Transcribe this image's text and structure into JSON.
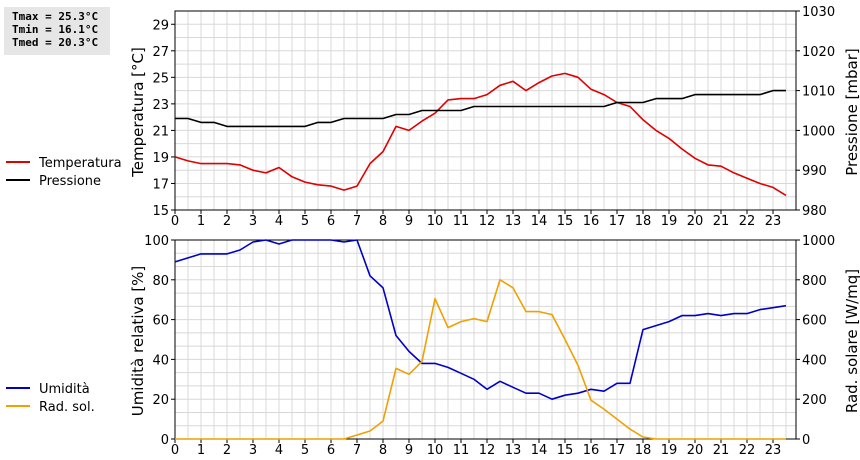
{
  "stats": {
    "tmax": "Tmax = 25.3°C",
    "tmin": "Tmin = 16.1°C",
    "tmed": "Tmed = 20.3°C"
  },
  "colors": {
    "temperatura": "#e00000",
    "pressione": "#000000",
    "umidita": "#0000c8",
    "rad_sol": "#f0a000",
    "grid": "#d8d8d8"
  },
  "chart_data": [
    {
      "type": "line",
      "grid": true,
      "legend_position": "left",
      "xlabel": "",
      "x_ticks": [
        "0",
        "1",
        "2",
        "3",
        "4",
        "5",
        "6",
        "7",
        "8",
        "9",
        "10",
        "11",
        "12",
        "13",
        "14",
        "15",
        "16",
        "17",
        "18",
        "19",
        "20",
        "21",
        "22",
        "23"
      ],
      "y_left": {
        "label": "Temperatura [°C]",
        "lim": [
          15,
          30
        ],
        "ticks": [
          "15",
          "17",
          "19",
          "21",
          "23",
          "25",
          "27",
          "29"
        ]
      },
      "y_right": {
        "label": "Pressione [mbar]",
        "lim": [
          980,
          1030
        ],
        "ticks": [
          "980",
          "990",
          "1000",
          "1010",
          "1020",
          "1030"
        ]
      },
      "series": [
        {
          "name": "Temperatura",
          "axis": "left",
          "x": [
            0,
            0.5,
            1,
            1.5,
            2,
            2.5,
            3,
            3.5,
            4,
            4.5,
            5,
            5.5,
            6,
            6.5,
            7,
            7.5,
            8,
            8.5,
            9,
            9.5,
            10,
            10.5,
            11,
            11.5,
            12,
            12.5,
            13,
            13.5,
            14,
            14.5,
            15,
            15.5,
            16,
            16.5,
            17,
            17.5,
            18,
            18.5,
            19,
            19.5,
            20,
            20.5,
            21,
            21.5,
            22,
            22.5,
            23,
            23.5
          ],
          "values": [
            19.0,
            18.7,
            18.5,
            18.5,
            18.5,
            18.4,
            18.0,
            17.8,
            18.2,
            17.5,
            17.1,
            16.9,
            16.8,
            16.5,
            16.8,
            18.5,
            19.4,
            21.3,
            21.0,
            21.7,
            22.3,
            23.3,
            23.4,
            23.4,
            23.7,
            24.4,
            24.7,
            24.0,
            24.6,
            25.1,
            25.3,
            25.0,
            24.1,
            23.7,
            23.1,
            22.8,
            21.8,
            21.0,
            20.4,
            19.6,
            18.9,
            18.4,
            18.3,
            17.8,
            17.4,
            17.0,
            16.7,
            16.1
          ]
        },
        {
          "name": "Pressione",
          "axis": "right",
          "x": [
            0,
            0.5,
            1,
            1.5,
            2,
            2.5,
            3,
            3.5,
            4,
            4.5,
            5,
            5.5,
            6,
            6.5,
            7,
            7.5,
            8,
            8.5,
            9,
            9.5,
            10,
            10.5,
            11,
            11.5,
            12,
            12.5,
            13,
            13.5,
            14,
            14.5,
            15,
            15.5,
            16,
            16.5,
            17,
            17.5,
            18,
            18.5,
            19,
            19.5,
            20,
            20.5,
            21,
            21.5,
            22,
            22.5,
            23,
            23.5
          ],
          "values": [
            1003,
            1003,
            1002,
            1002,
            1001,
            1001,
            1001,
            1001,
            1001,
            1001,
            1001,
            1002,
            1002,
            1003,
            1003,
            1003,
            1003,
            1004,
            1004,
            1005,
            1005,
            1005,
            1005,
            1006,
            1006,
            1006,
            1006,
            1006,
            1006,
            1006,
            1006,
            1006,
            1006,
            1006,
            1007,
            1007,
            1007,
            1008,
            1008,
            1008,
            1009,
            1009,
            1009,
            1009,
            1009,
            1009,
            1010,
            1010
          ]
        }
      ]
    },
    {
      "type": "line",
      "grid": true,
      "legend_position": "left",
      "xlabel": "",
      "x_ticks": [
        "0",
        "1",
        "2",
        "3",
        "4",
        "5",
        "6",
        "7",
        "8",
        "9",
        "10",
        "11",
        "12",
        "13",
        "14",
        "15",
        "16",
        "17",
        "18",
        "19",
        "20",
        "21",
        "22",
        "23"
      ],
      "y_left": {
        "label": "Umidità relativa [%]",
        "lim": [
          0,
          100
        ],
        "ticks": [
          "0",
          "20",
          "40",
          "60",
          "80",
          "100"
        ]
      },
      "y_right": {
        "label": "Rad. solare [W/mq]",
        "lim": [
          0,
          1000
        ],
        "ticks": [
          "0",
          "200",
          "400",
          "600",
          "800",
          "1000"
        ]
      },
      "series": [
        {
          "name": "Umidità",
          "axis": "left",
          "x": [
            0,
            0.5,
            1,
            1.5,
            2,
            2.5,
            3,
            3.5,
            4,
            4.5,
            5,
            5.5,
            6,
            6.5,
            7,
            7.5,
            8,
            8.5,
            9,
            9.5,
            10,
            10.5,
            11,
            11.5,
            12,
            12.5,
            13,
            13.5,
            14,
            14.5,
            15,
            15.5,
            16,
            16.5,
            17,
            17.5,
            18,
            18.5,
            19,
            19.5,
            20,
            20.5,
            21,
            21.5,
            22,
            22.5,
            23,
            23.5
          ],
          "values": [
            89,
            91,
            93,
            93,
            93,
            95,
            99,
            100,
            98,
            100,
            100,
            100,
            100,
            99,
            100,
            82,
            76,
            52,
            44,
            38,
            38,
            36,
            33,
            30,
            25,
            29,
            26,
            23,
            23,
            20,
            22,
            23,
            25,
            24,
            28,
            28,
            55,
            57,
            59,
            62,
            62,
            63,
            62,
            63,
            63,
            65,
            66,
            67
          ]
        },
        {
          "name": "Rad. sol.",
          "axis": "right",
          "x": [
            0,
            0.5,
            1,
            1.5,
            2,
            2.5,
            3,
            3.5,
            4,
            4.5,
            5,
            5.5,
            6,
            6.5,
            7,
            7.5,
            8,
            8.5,
            9,
            9.5,
            10,
            10.5,
            11,
            11.5,
            12,
            12.5,
            13,
            13.5,
            14,
            14.5,
            15,
            15.5,
            16,
            16.5,
            17,
            17.5,
            18,
            18.5,
            19,
            19.5,
            20,
            20.5,
            21,
            21.5,
            22,
            22.5,
            23,
            23.5
          ],
          "values": [
            0,
            0,
            0,
            0,
            0,
            0,
            0,
            0,
            0,
            0,
            0,
            0,
            0,
            0,
            20,
            40,
            90,
            355,
            325,
            390,
            705,
            560,
            590,
            605,
            590,
            800,
            760,
            640,
            640,
            625,
            500,
            370,
            195,
            150,
            100,
            50,
            10,
            0,
            0,
            0,
            0,
            0,
            0,
            0,
            0,
            0,
            0,
            0
          ]
        }
      ]
    }
  ]
}
